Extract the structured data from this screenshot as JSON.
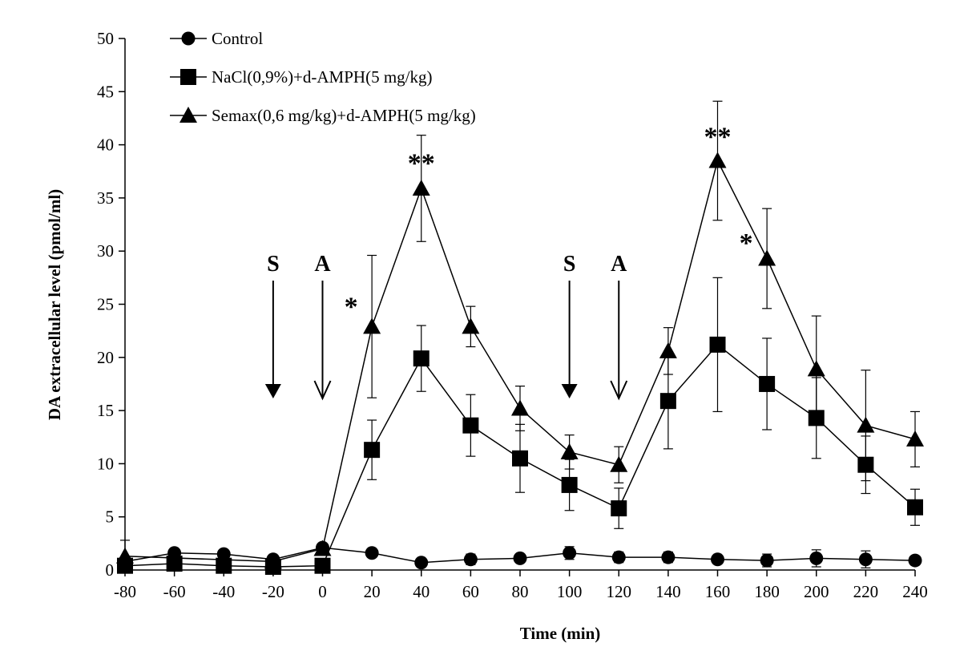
{
  "chart_data": {
    "type": "line",
    "xlabel": "Time (min)",
    "ylabel": "DA extracellular level (pmol/ml)",
    "xlim": [
      -80,
      240
    ],
    "ylim": [
      0,
      50
    ],
    "x_ticks": [
      "-80",
      "-60",
      "-40",
      "-20",
      "0",
      "20",
      "40",
      "60",
      "80",
      "100",
      "120",
      "140",
      "160",
      "180",
      "200",
      "220",
      "240"
    ],
    "y_ticks": [
      "0",
      "5",
      "10",
      "15",
      "20",
      "25",
      "30",
      "35",
      "40",
      "45",
      "50"
    ],
    "x_tick_values": [
      -80,
      -60,
      -40,
      -20,
      0,
      20,
      40,
      60,
      80,
      100,
      120,
      140,
      160,
      180,
      200,
      220,
      240
    ],
    "y_tick_values": [
      0,
      5,
      10,
      15,
      20,
      25,
      30,
      35,
      40,
      45,
      50
    ],
    "legend_position": "top-left",
    "grid": false,
    "series": [
      {
        "name": "Control",
        "marker": "circle",
        "x": [
          -80,
          -60,
          -40,
          -20,
          0,
          20,
          40,
          60,
          80,
          100,
          120,
          140,
          160,
          180,
          200,
          220,
          240
        ],
        "values": [
          0.8,
          1.6,
          1.5,
          1.0,
          2.1,
          1.6,
          0.7,
          1.0,
          1.1,
          1.6,
          1.2,
          1.2,
          1.0,
          0.9,
          1.1,
          1.0,
          0.9
        ],
        "errors": [
          0,
          0,
          0.3,
          0.3,
          0.2,
          0.3,
          0.2,
          0.5,
          0.3,
          0.6,
          0.5,
          0.5,
          0.4,
          0.6,
          0.8,
          0.8,
          0.4
        ]
      },
      {
        "name": "NaCl(0,9%)+d-AMPH(5 mg/kg)",
        "marker": "square",
        "x": [
          -80,
          -60,
          -40,
          -20,
          0,
          20,
          40,
          60,
          80,
          100,
          120,
          140,
          160,
          180,
          200,
          220,
          240
        ],
        "values": [
          0.4,
          0.6,
          0.4,
          0.3,
          0.4,
          11.3,
          19.9,
          13.6,
          10.5,
          8.0,
          5.8,
          15.9,
          21.2,
          17.5,
          14.3,
          9.9,
          5.9
        ],
        "errors": [
          0,
          0,
          0,
          0,
          0,
          2.8,
          3.1,
          2.9,
          3.2,
          2.4,
          1.9,
          4.5,
          6.3,
          4.3,
          3.8,
          2.7,
          1.7
        ]
      },
      {
        "name": "Semax(0,6 mg/kg)+d-AMPH(5 mg/kg)",
        "marker": "triangle",
        "x": [
          -80,
          -60,
          -40,
          -20,
          0,
          20,
          40,
          60,
          80,
          100,
          120,
          140,
          160,
          180,
          200,
          220,
          240
        ],
        "values": [
          1.3,
          null,
          null,
          0.8,
          2.0,
          22.9,
          35.9,
          22.9,
          15.2,
          11.1,
          9.9,
          20.6,
          38.5,
          29.3,
          18.9,
          13.6,
          12.3
        ],
        "errors": [
          1.5,
          0,
          0,
          0,
          0,
          6.7,
          5.0,
          1.9,
          2.1,
          1.6,
          1.7,
          2.2,
          5.6,
          4.7,
          5.0,
          5.2,
          2.6
        ]
      }
    ],
    "annotations": [
      {
        "text": "S",
        "x": -20,
        "arrow": "filled"
      },
      {
        "text": "A",
        "x": 0,
        "arrow": "open"
      },
      {
        "text": "S",
        "x": 100,
        "arrow": "filled"
      },
      {
        "text": "A",
        "x": 120,
        "arrow": "open"
      },
      {
        "text": "*",
        "x": 20,
        "y": 25
      },
      {
        "text": "**",
        "x": 40,
        "y": 38.5
      },
      {
        "text": "**",
        "x": 160,
        "y": 41
      },
      {
        "text": "*",
        "x": 180,
        "y": 31
      }
    ]
  }
}
